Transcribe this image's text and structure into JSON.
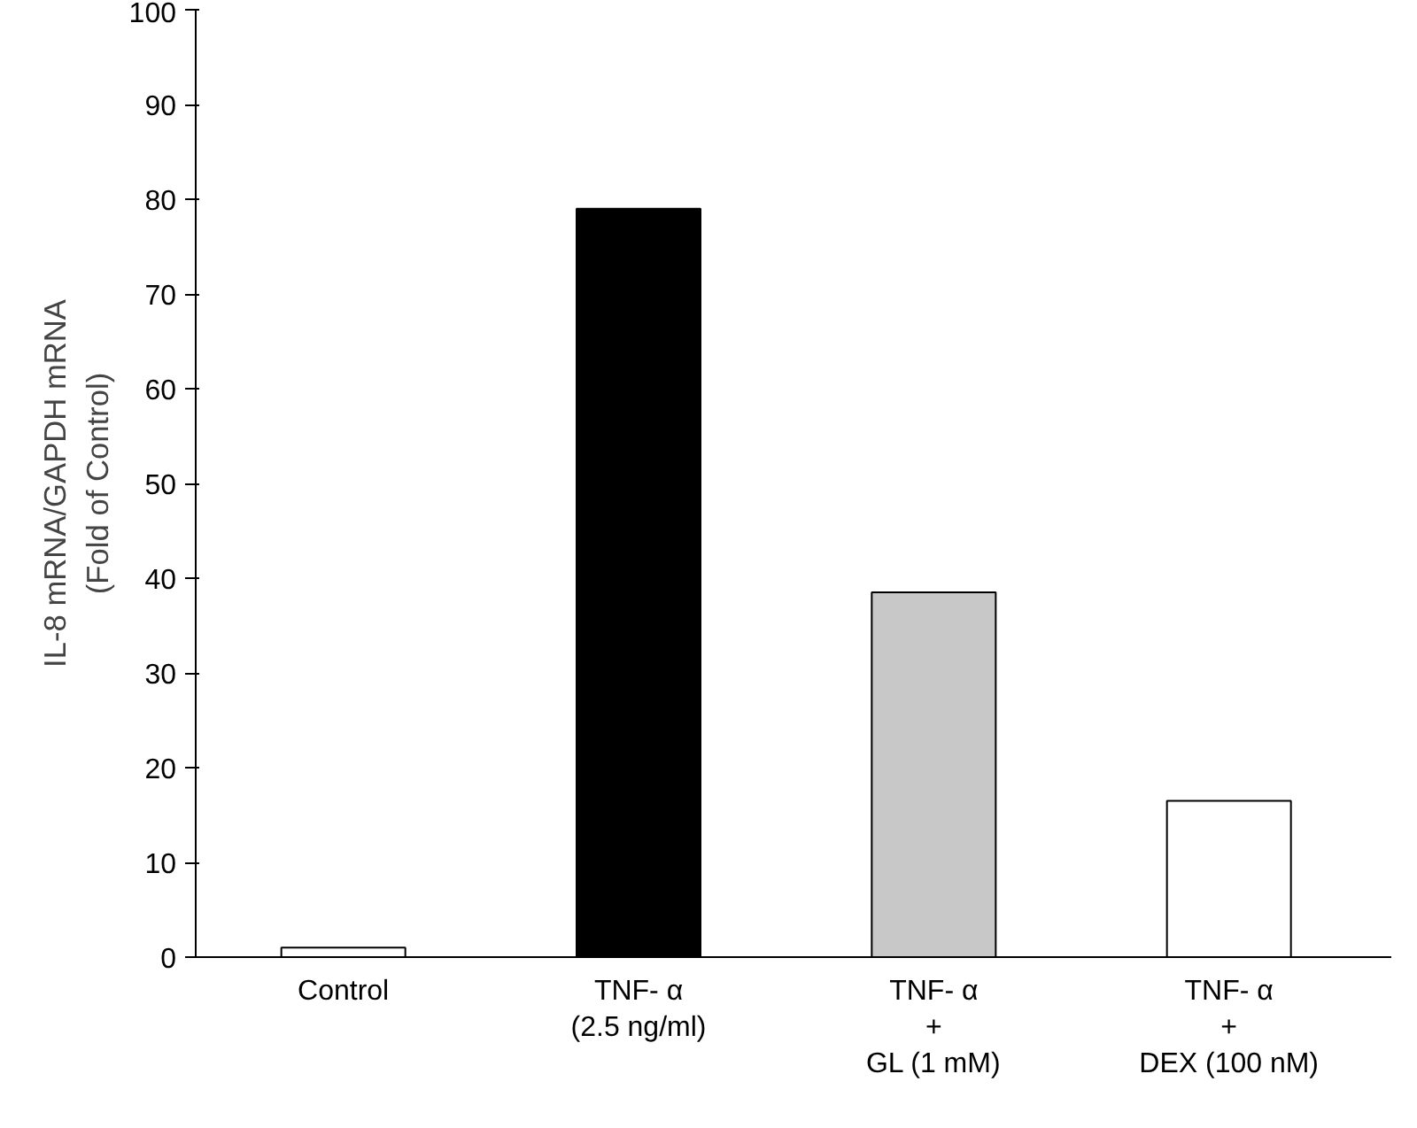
{
  "chart_data": {
    "type": "bar",
    "ylabel": "IL-8 mRNA/GAPDH mRNA\n(Fold of Control)",
    "categories": [
      "Control",
      "TNF- α\n(2.5 ng/ml)",
      "TNF- α\n+\nGL (1 mM)",
      "TNF- α\n+\nDEX (100 nM)"
    ],
    "values": [
      1,
      79,
      38.5,
      16.5
    ],
    "colors": [
      "#ffffff",
      "#000000",
      "#c8c8c8",
      "#ffffff"
    ],
    "ylim": [
      0,
      100
    ],
    "yticks": [
      0,
      10,
      20,
      30,
      40,
      50,
      60,
      70,
      80,
      90,
      100
    ],
    "grid": false
  }
}
